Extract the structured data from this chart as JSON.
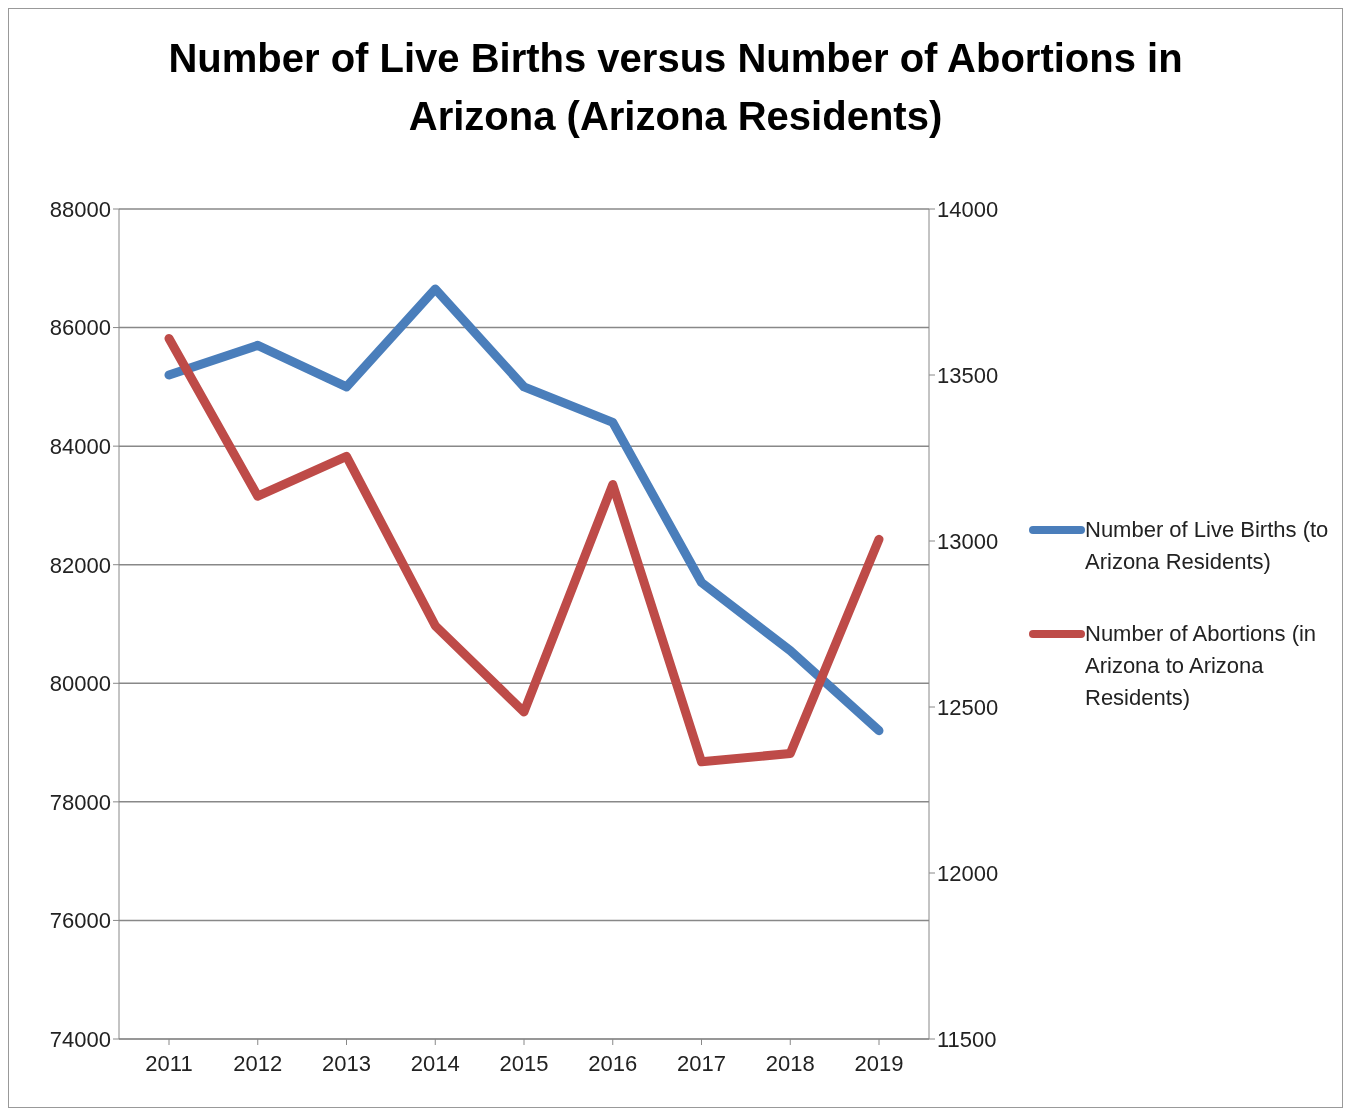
{
  "chart_data": {
    "type": "line",
    "title": "Number of Live Births versus Number of Abortions in Arizona (Arizona Residents)",
    "categories": [
      "2011",
      "2012",
      "2013",
      "2014",
      "2015",
      "2016",
      "2017",
      "2018",
      "2019"
    ],
    "series": [
      {
        "name": "Number of Live Births (to Arizona Residents)",
        "color": "#4a7ebb",
        "values": [
          85200,
          85700,
          85000,
          86650,
          85000,
          84400,
          81700,
          80550,
          79200
        ]
      },
      {
        "name": "Number of Abortions (in Arizona to Arizona Residents)",
        "color": "#be4b48",
        "axis": "y2",
        "values": [
          13610,
          13135,
          13255,
          12745,
          12485,
          13170,
          12335,
          12360,
          13005
        ]
      }
    ],
    "ylim": [
      74000,
      88000
    ],
    "yticks": [
      74000,
      76000,
      78000,
      80000,
      82000,
      84000,
      86000,
      88000
    ],
    "y2lim": [
      11500,
      14000
    ],
    "y2ticks": [
      11500,
      12000,
      12500,
      13000,
      13500,
      14000
    ],
    "grid": "y",
    "legend": "right",
    "marker": "none",
    "line_style": "solid"
  }
}
